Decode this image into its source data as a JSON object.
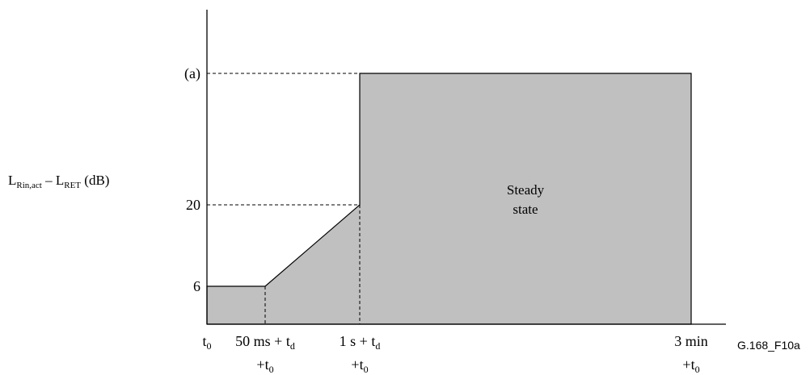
{
  "chart_data": {
    "type": "area",
    "ylabel": {
      "parts": [
        {
          "text": "L",
          "sub": "Rin,act"
        },
        {
          "text": " – L",
          "sub": "RET"
        },
        {
          "text": " (dB)",
          "sub": ""
        }
      ]
    },
    "y_ticks": [
      {
        "value": 6,
        "label": "6"
      },
      {
        "value": 20,
        "label": "20"
      },
      {
        "value": 34,
        "label": "(a)"
      }
    ],
    "x_ticks": [
      {
        "key": "t0",
        "lines": [
          [
            {
              "text": "t",
              "sub": "0"
            }
          ]
        ]
      },
      {
        "key": "t50",
        "lines": [
          [
            {
              "text": "50 ms + t",
              "sub": "d"
            }
          ],
          [
            {
              "text": "+t",
              "sub": "0"
            }
          ]
        ]
      },
      {
        "key": "t1s",
        "lines": [
          [
            {
              "text": "1 s + t",
              "sub": "d"
            }
          ],
          [
            {
              "text": "+t",
              "sub": "0"
            }
          ]
        ]
      },
      {
        "key": "t3min",
        "lines": [
          [
            {
              "text": "3 min",
              "sub": ""
            }
          ],
          [
            {
              "text": "+t",
              "sub": "0"
            }
          ]
        ]
      }
    ],
    "envelope": [
      {
        "x": "t0",
        "y": 6
      },
      {
        "x": "t50",
        "y": 6
      },
      {
        "x": "t1s",
        "y": 20
      },
      {
        "x": "t1s",
        "y": 34
      },
      {
        "x": "t3min",
        "y": 34
      },
      {
        "x": "t3min",
        "y": 0
      }
    ],
    "annotation": {
      "lines": [
        "Steady",
        "state"
      ]
    },
    "figure_id": "G.168_F10a",
    "colors": {
      "fill": "#c0c0c0",
      "stroke": "#000000"
    }
  }
}
